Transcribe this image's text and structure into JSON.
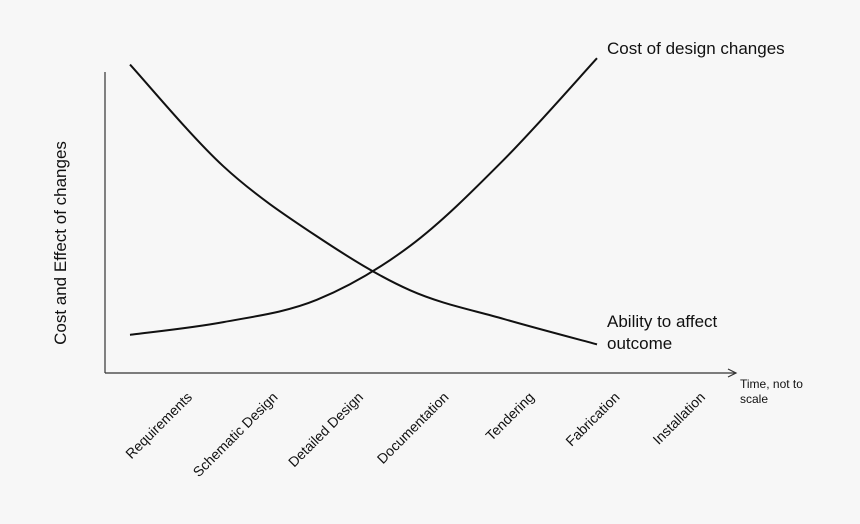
{
  "chart_data": {
    "type": "line",
    "y_label": "Cost and Effect of changes",
    "x_label": "Time, not to scale",
    "categories": [
      "Requirements",
      "Schematic Design",
      "Detailed Design",
      "Documentation",
      "Tendering",
      "Fabrication",
      "Installation"
    ],
    "ylim": [
      0,
      100
    ],
    "series": [
      {
        "name": "Cost of design changes",
        "color": "#111111",
        "values": [
          12,
          16,
          23,
          40,
          67,
          99,
          null
        ]
      },
      {
        "name": "Ability to affect outcome",
        "color": "#111111",
        "values": [
          97,
          65,
          43,
          26,
          17,
          9,
          null
        ]
      }
    ]
  }
}
